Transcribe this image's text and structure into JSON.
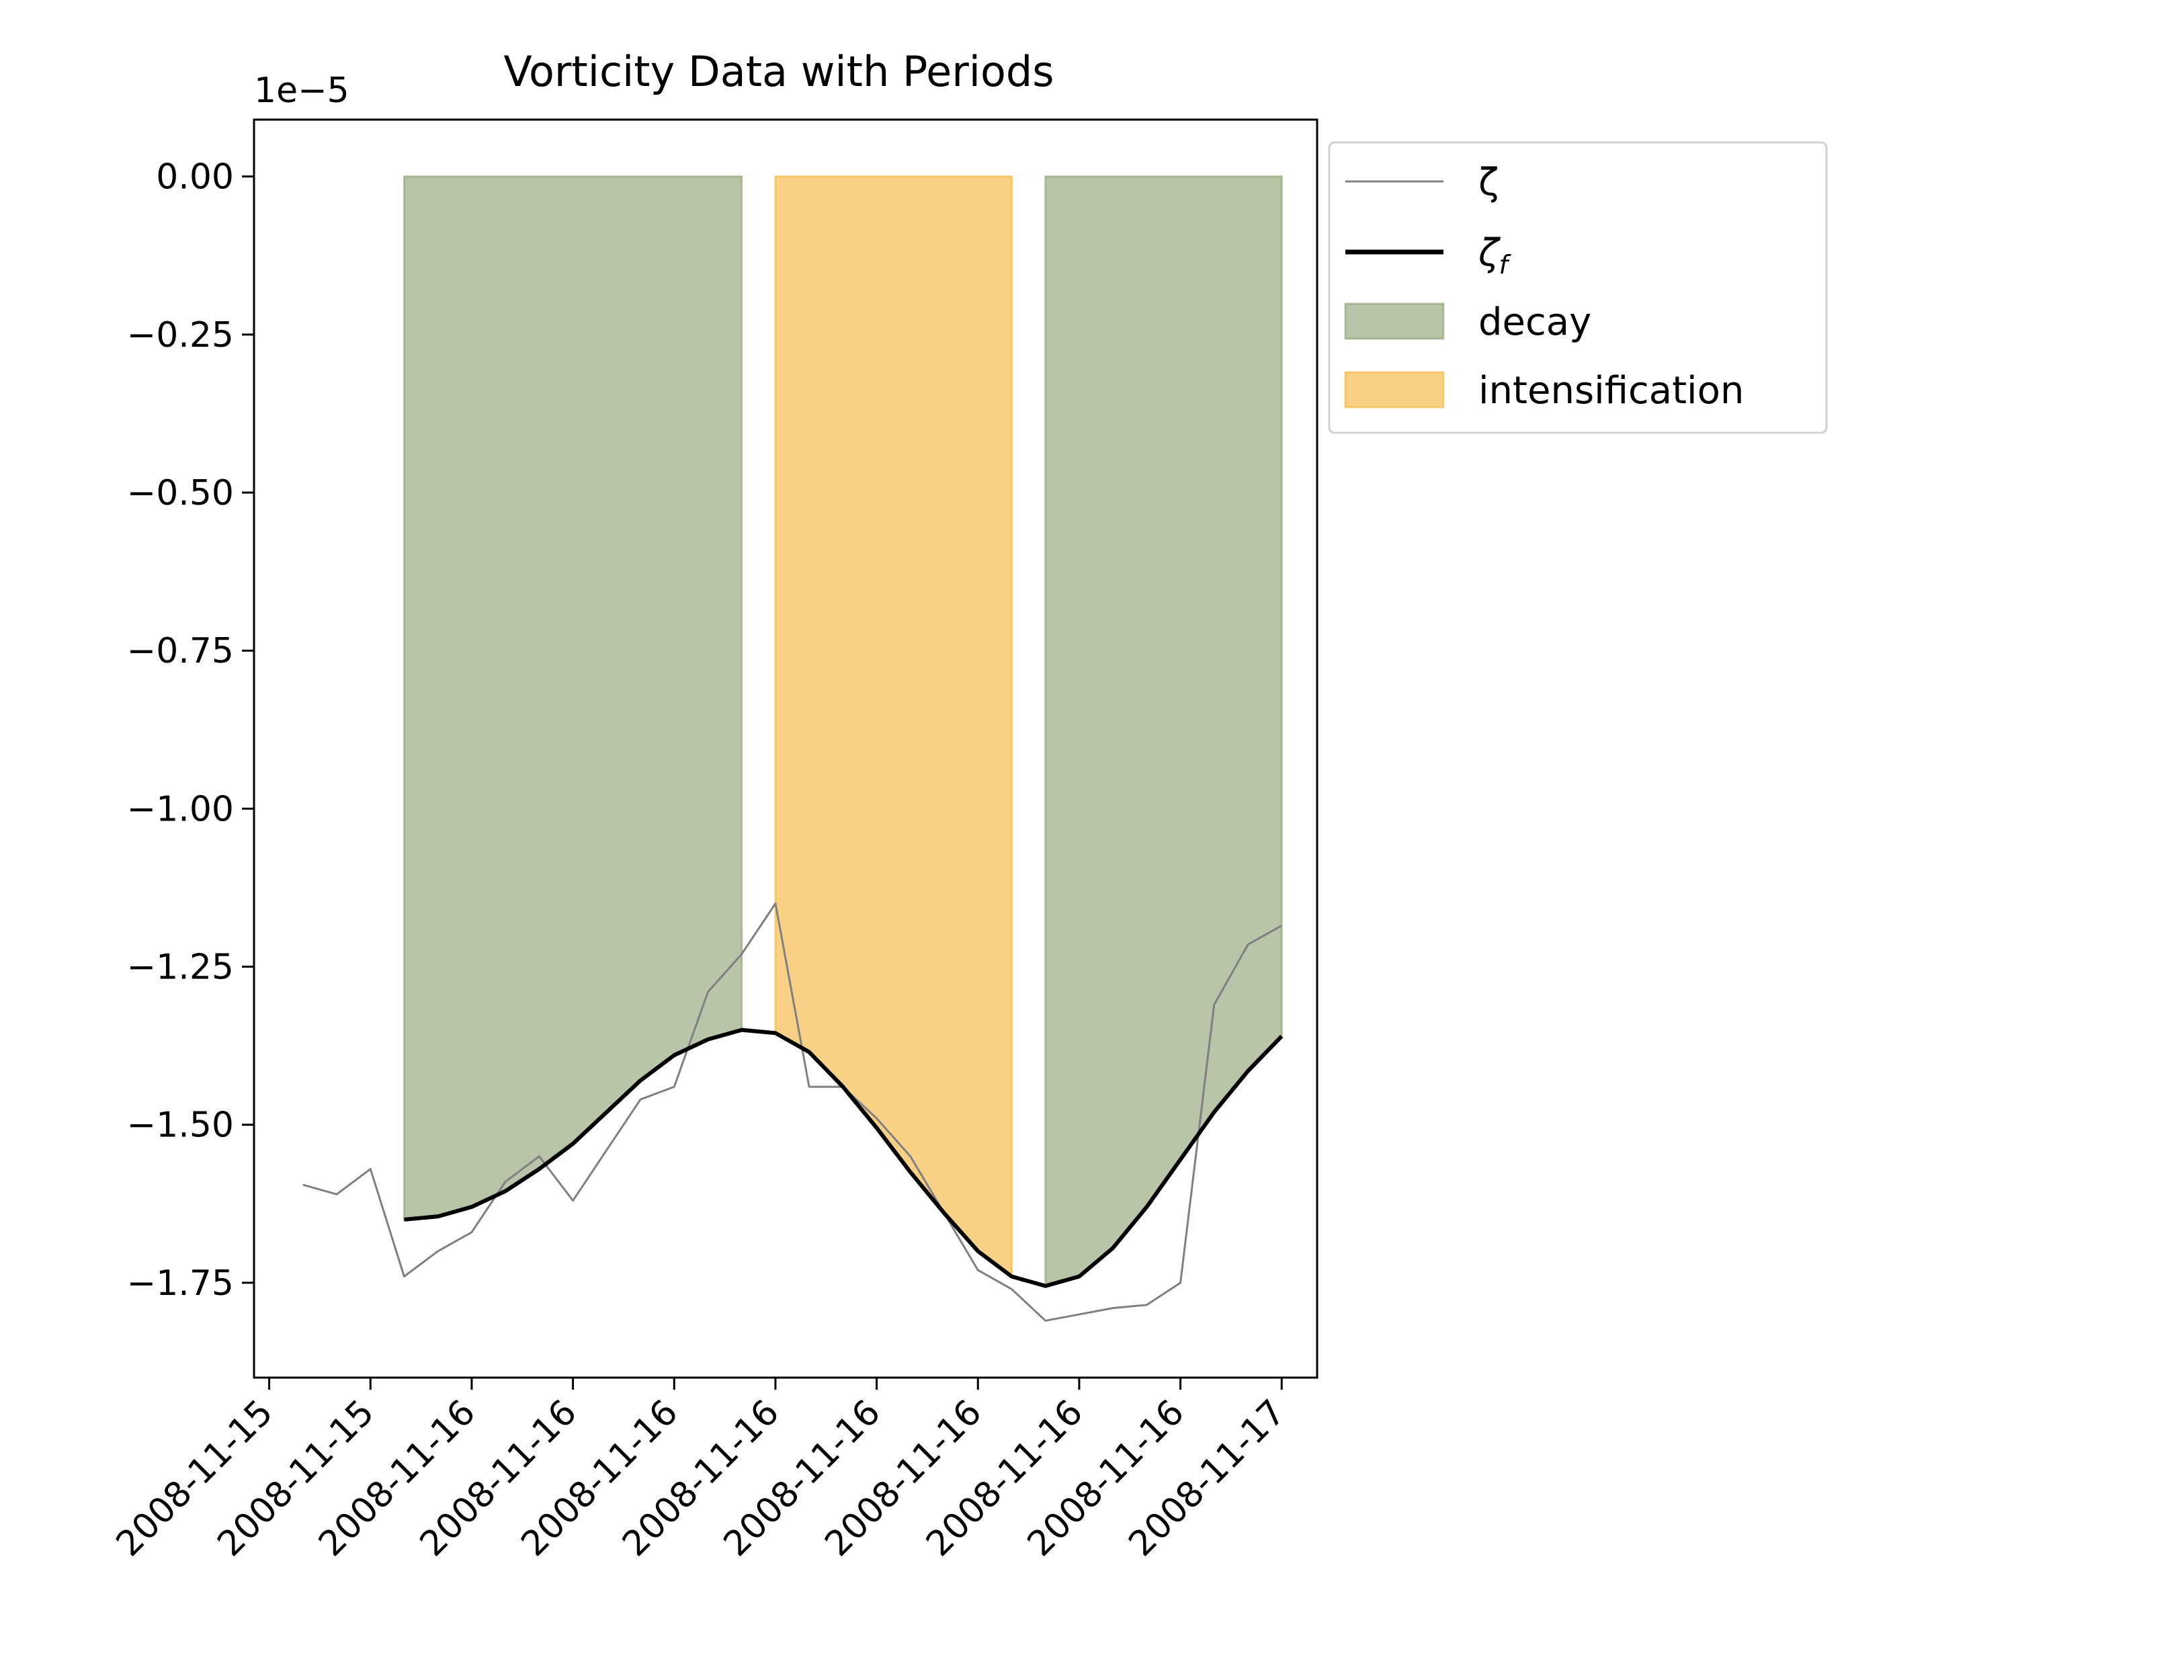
{
  "chart_data": {
    "type": "line",
    "title": "Vorticity Data with Periods",
    "offset_label": "1e−5",
    "xlabel": "",
    "ylabel": "",
    "ylim": [
      -1.9,
      0.09
    ],
    "xlim": [
      -0.15,
      10.35
    ],
    "yticks": [
      {
        "value": 0.0,
        "label": "0.00"
      },
      {
        "value": -0.25,
        "label": "−0.25"
      },
      {
        "value": -0.5,
        "label": "−0.50"
      },
      {
        "value": -0.75,
        "label": "−0.75"
      },
      {
        "value": -1.0,
        "label": "−1.00"
      },
      {
        "value": -1.25,
        "label": "−1.25"
      },
      {
        "value": -1.5,
        "label": "−1.50"
      },
      {
        "value": -1.75,
        "label": "−1.75"
      }
    ],
    "xticks": [
      {
        "value": 0,
        "label": "2008-11-15"
      },
      {
        "value": 1,
        "label": "2008-11-15"
      },
      {
        "value": 2,
        "label": "2008-11-16"
      },
      {
        "value": 3,
        "label": "2008-11-16"
      },
      {
        "value": 4,
        "label": "2008-11-16"
      },
      {
        "value": 5,
        "label": "2008-11-16"
      },
      {
        "value": 6,
        "label": "2008-11-16"
      },
      {
        "value": 7,
        "label": "2008-11-16"
      },
      {
        "value": 8,
        "label": "2008-11-16"
      },
      {
        "value": 9,
        "label": "2008-11-16"
      },
      {
        "value": 10,
        "label": "2008-11-17"
      }
    ],
    "series": [
      {
        "name": "ζ",
        "color": "#808080",
        "x": [
          0.333,
          0.667,
          1.0,
          1.333,
          1.667,
          2.0,
          2.333,
          2.667,
          3.0,
          3.333,
          3.667,
          4.0,
          4.333,
          4.667,
          5.0,
          5.333,
          5.667,
          6.0,
          6.333,
          6.667,
          7.0,
          7.333,
          7.667,
          8.0,
          8.333,
          8.667,
          9.0,
          9.333,
          9.667,
          10.0
        ],
        "values": [
          -1.595,
          -1.61,
          -1.57,
          -1.74,
          -1.7,
          -1.67,
          -1.59,
          -1.55,
          -1.62,
          -1.54,
          -1.46,
          -1.44,
          -1.29,
          -1.23,
          -1.15,
          -1.44,
          -1.44,
          -1.49,
          -1.55,
          -1.64,
          -1.73,
          -1.76,
          -1.81,
          -1.8,
          -1.79,
          -1.785,
          -1.75,
          -1.31,
          -1.215,
          -1.185
        ]
      },
      {
        "name": "ζf",
        "color": "#000000",
        "x": [
          1.333,
          1.667,
          2.0,
          2.333,
          2.667,
          3.0,
          3.333,
          3.667,
          4.0,
          4.333,
          4.667,
          5.0,
          5.333,
          5.667,
          6.0,
          6.333,
          6.667,
          7.0,
          7.333,
          7.667,
          8.0,
          8.333,
          8.667,
          9.0,
          9.333,
          9.667,
          10.0
        ],
        "values": [
          -1.65,
          -1.645,
          -1.63,
          -1.605,
          -1.57,
          -1.53,
          -1.48,
          -1.43,
          -1.39,
          -1.365,
          -1.35,
          -1.355,
          -1.385,
          -1.44,
          -1.505,
          -1.575,
          -1.64,
          -1.7,
          -1.74,
          -1.755,
          -1.74,
          -1.695,
          -1.63,
          -1.555,
          -1.48,
          -1.415,
          -1.36
        ]
      }
    ],
    "periods": [
      {
        "kind": "decay",
        "label": "decay",
        "color": "#8a9f6e",
        "x_start": 1.333,
        "x_end": 4.667
      },
      {
        "kind": "intensification",
        "label": "intensification",
        "color": "#f5b335",
        "x_start": 5.0,
        "x_end": 7.333
      },
      {
        "kind": "decay",
        "label": "decay",
        "color": "#8a9f6e",
        "x_start": 7.667,
        "x_end": 10.0
      }
    ],
    "legend": {
      "position": "outside-upper-right",
      "entries": [
        {
          "label": "ζ",
          "kind": "line",
          "color": "#808080"
        },
        {
          "label": "ζ",
          "subscript": "f",
          "kind": "line",
          "color": "#000000"
        },
        {
          "label": "decay",
          "kind": "patch",
          "color": "#8a9f6e"
        },
        {
          "label": "intensification",
          "kind": "patch",
          "color": "#f5b335"
        }
      ]
    }
  }
}
